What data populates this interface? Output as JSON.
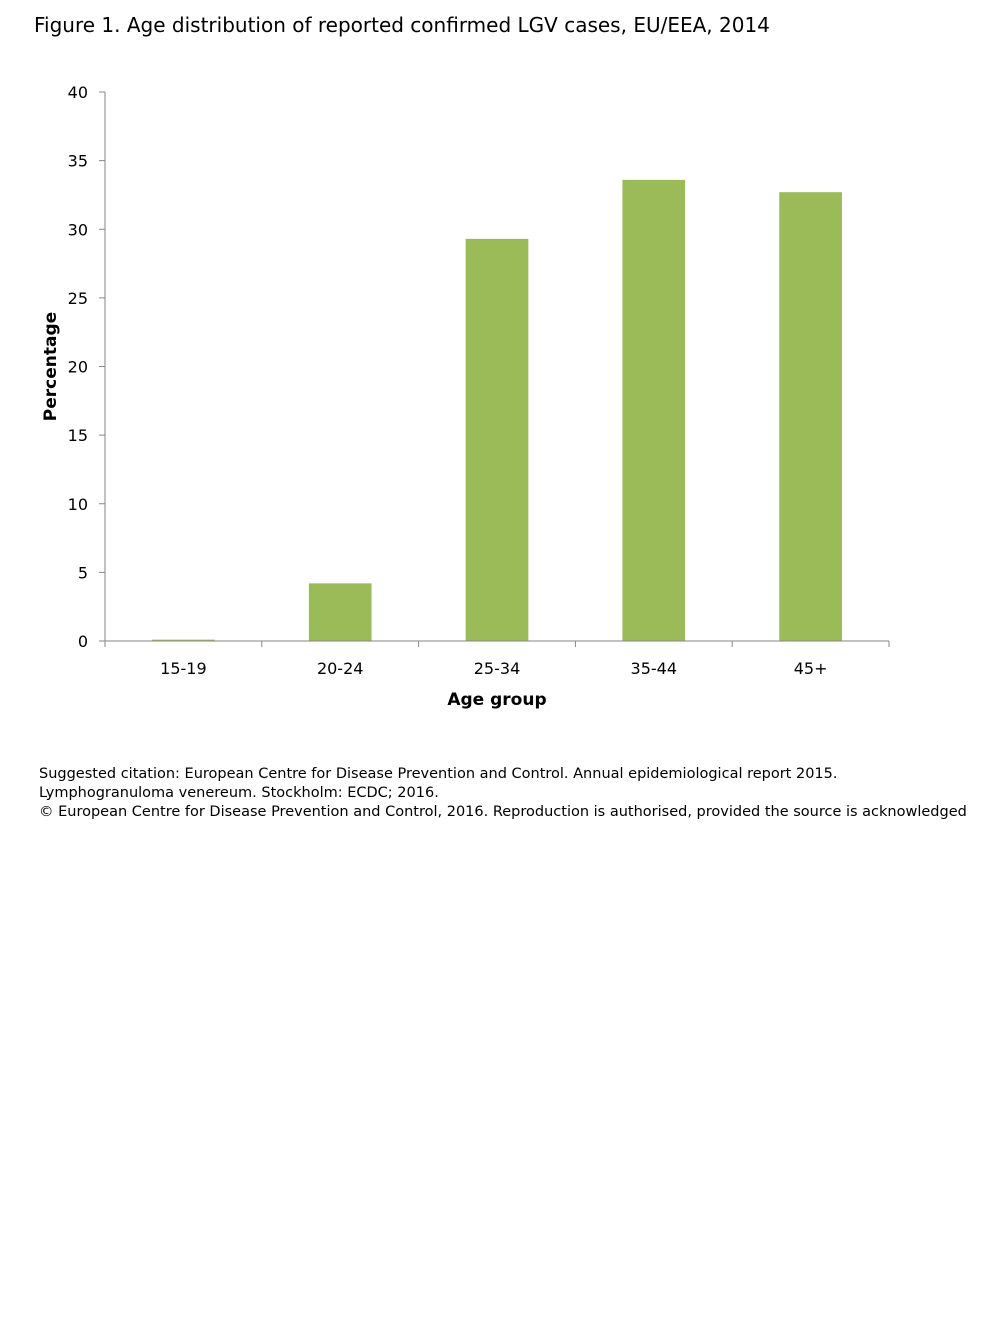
{
  "figure": {
    "title": "Figure 1. Age distribution of reported confirmed LGV cases, EU/EEA, 2014"
  },
  "chart_data": {
    "type": "bar",
    "categories": [
      "15-19",
      "20-24",
      "25-34",
      "35-44",
      "45+"
    ],
    "values": [
      0.1,
      4.2,
      29.3,
      33.6,
      32.7
    ],
    "xlabel": "Age group",
    "ylabel": "Percentage",
    "ylim": [
      0,
      40
    ],
    "yticks": [
      0,
      5,
      10,
      15,
      20,
      25,
      30,
      35,
      40
    ],
    "bar_color": "#9bbb59",
    "axis_color": "#868686",
    "grid": false,
    "legend": "none"
  },
  "citation": {
    "line1": "Suggested citation: European Centre for Disease Prevention and Control. Annual epidemiological report 2015. Lymphogranuloma venereum. Stockholm: ECDC; 2016.",
    "line2": "© European Centre for Disease Prevention and Control, 2016. Reproduction is authorised, provided the source is acknowledged"
  }
}
